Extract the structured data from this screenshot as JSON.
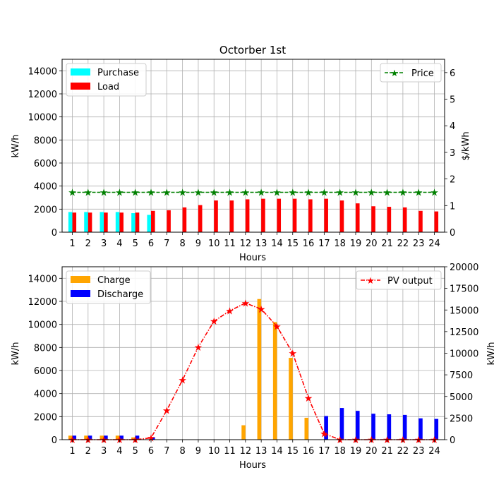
{
  "chart_data": [
    {
      "type": "bar",
      "title": "Octorber 1st",
      "xlabel": "Hours",
      "ylabel": "kW/h",
      "ylabel_right": "$/kWh",
      "ylim": [
        0,
        15000
      ],
      "ylim_right": [
        0,
        6.5
      ],
      "yticks": [
        "0",
        "2000",
        "4000",
        "6000",
        "8000",
        "10000",
        "12000",
        "14000"
      ],
      "yticks_right": [
        "0",
        "1",
        "2",
        "3",
        "4",
        "5",
        "6"
      ],
      "categories": [
        "1",
        "2",
        "3",
        "4",
        "5",
        "6",
        "7",
        "8",
        "9",
        "10",
        "11",
        "12",
        "13",
        "14",
        "15",
        "16",
        "17",
        "18",
        "19",
        "20",
        "21",
        "22",
        "23",
        "24"
      ],
      "grid": true,
      "legend_left": "top-left",
      "legend_right": "top-right",
      "series": [
        {
          "name": "Purchase",
          "color": "#00ffff",
          "values": [
            1750,
            1750,
            1750,
            1750,
            1650,
            1500,
            0,
            0,
            0,
            0,
            0,
            0,
            0,
            0,
            0,
            0,
            0,
            0,
            0,
            0,
            0,
            0,
            0,
            0
          ]
        },
        {
          "name": "Load",
          "color": "#ff0000",
          "values": [
            1700,
            1700,
            1700,
            1700,
            1700,
            1850,
            1900,
            2150,
            2350,
            2750,
            2750,
            2850,
            2900,
            2900,
            2900,
            2850,
            2900,
            2750,
            2500,
            2250,
            2200,
            2150,
            1850,
            1800
          ]
        }
      ],
      "line_series": [
        {
          "name": "Price",
          "color": "#008000",
          "axis": "right",
          "values": [
            1.5,
            1.5,
            1.5,
            1.5,
            1.5,
            1.5,
            1.5,
            1.5,
            1.5,
            1.5,
            1.5,
            1.5,
            1.5,
            1.5,
            1.5,
            1.5,
            1.5,
            1.5,
            1.5,
            1.5,
            1.5,
            1.5,
            1.5,
            1.5
          ]
        }
      ]
    },
    {
      "type": "bar",
      "title": "",
      "xlabel": "Hours",
      "ylabel": "kW/h",
      "ylabel_right": "kW/h",
      "ylim": [
        0,
        15000
      ],
      "ylim_right": [
        0,
        20000
      ],
      "yticks": [
        "0",
        "2000",
        "4000",
        "6000",
        "8000",
        "10000",
        "12000",
        "14000"
      ],
      "yticks_right": [
        "0",
        "2500",
        "5000",
        "7500",
        "10000",
        "12500",
        "15000",
        "17500",
        "20000"
      ],
      "categories": [
        "1",
        "2",
        "3",
        "4",
        "5",
        "6",
        "7",
        "8",
        "9",
        "10",
        "11",
        "12",
        "13",
        "14",
        "15",
        "16",
        "17",
        "18",
        "19",
        "20",
        "21",
        "22",
        "23",
        "24"
      ],
      "grid": true,
      "legend_left": "top-left",
      "legend_right": "top-right",
      "series": [
        {
          "name": "Charge",
          "color": "#ffa500",
          "values": [
            350,
            350,
            350,
            350,
            200,
            0,
            0,
            0,
            0,
            0,
            0,
            1250,
            12200,
            10200,
            7100,
            1900,
            0,
            0,
            0,
            0,
            0,
            0,
            0,
            0
          ]
        },
        {
          "name": "Discharge",
          "color": "#0000ff",
          "values": [
            350,
            350,
            350,
            350,
            350,
            200,
            0,
            0,
            0,
            0,
            0,
            0,
            0,
            0,
            0,
            0,
            2050,
            2750,
            2500,
            2250,
            2200,
            2150,
            1850,
            1800
          ]
        }
      ],
      "line_series": [
        {
          "name": "PV output",
          "color": "#ff0000",
          "axis": "right",
          "values": [
            0,
            0,
            0,
            0,
            0,
            200,
            3400,
            6900,
            10700,
            13700,
            14900,
            15800,
            15100,
            13100,
            10000,
            4800,
            700,
            0,
            0,
            0,
            0,
            0,
            0,
            0
          ]
        }
      ]
    }
  ]
}
